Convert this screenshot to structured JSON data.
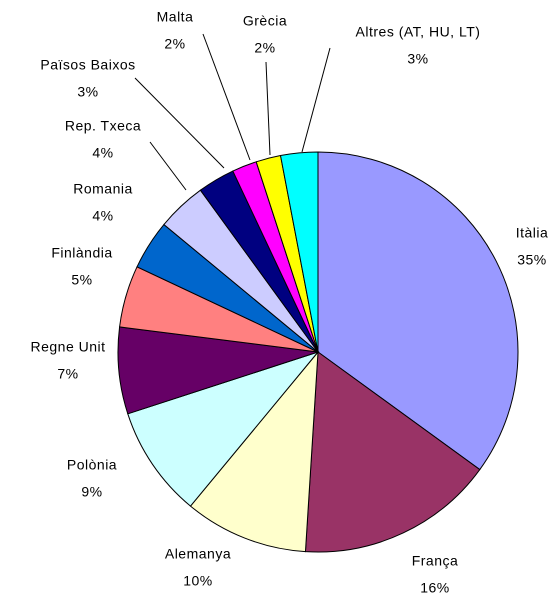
{
  "chart_data": {
    "type": "pie",
    "categories": [
      "Itàlia",
      "França",
      "Alemanya",
      "Polònia",
      "Regne Unit",
      "Finlàndia",
      "Romania",
      "Rep. Txeca",
      "Països Baixos",
      "Malta",
      "Grècia",
      "Altres (AT, HU, LT)"
    ],
    "values": [
      35,
      16,
      10,
      9,
      7,
      5,
      4,
      4,
      3,
      2,
      2,
      3
    ],
    "value_labels": [
      "35%",
      "16%",
      "10%",
      "9%",
      "7%",
      "5%",
      "4%",
      "4%",
      "3%",
      "2%",
      "2%",
      "3%"
    ],
    "colors": [
      "#9999ff",
      "#993366",
      "#ffffcc",
      "#ccffff",
      "#660066",
      "#ff8080",
      "#0066cc",
      "#ccccff",
      "#000080",
      "#ff00ff",
      "#ffff00",
      "#00ffff"
    ]
  }
}
